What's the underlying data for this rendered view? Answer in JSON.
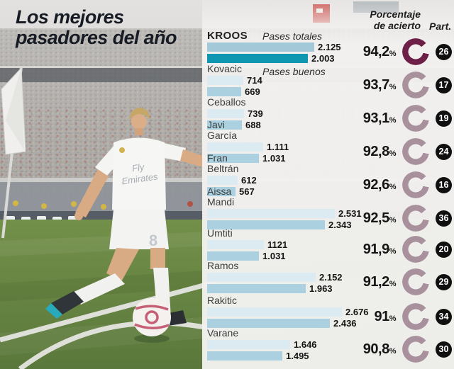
{
  "title": "Los mejores\npasadores del año",
  "photo": {
    "jersey": {
      "0": "Fly",
      "1": "Emirates"
    },
    "short_number": "8"
  },
  "chart_data": {
    "type": "bar",
    "orientation": "horizontal",
    "title": "Los mejores pasadores del año",
    "legend": {
      "total_label": "Pases totales",
      "good_label": "Pases buenos"
    },
    "headers": {
      "accuracy": "Porcentaje\nde acierto",
      "matches": "Part."
    },
    "percent_sign": "%",
    "xlim": [
      0,
      2676
    ],
    "colors": {
      "highlight_total_bar": "#a3c9d8",
      "highlight_good_bar": "#0f97b2",
      "total_bar": "#dcebf2",
      "good_bar": "#abd1e1",
      "ring_highlight": "#6e1f47",
      "ring": "#a8919c",
      "badge_bg": "#101010"
    },
    "players": [
      {
        "name": "KROOS",
        "total": "2.125",
        "good": "2.003",
        "accuracy": "94,2",
        "matches": "26",
        "highlight": true
      },
      {
        "name": "Kovacic",
        "total": "714",
        "good": "669",
        "accuracy": "93,7",
        "matches": "17"
      },
      {
        "name": "Ceballos",
        "total": "739",
        "good": "688",
        "accuracy": "93,1",
        "matches": "19"
      },
      {
        "name": "Javi\nGarcía",
        "total": "1.111",
        "good": "1.031",
        "accuracy": "92,8",
        "matches": "24"
      },
      {
        "name": "Fran\nBeltrán",
        "total": "612",
        "good": "567",
        "accuracy": "92,6",
        "matches": "16"
      },
      {
        "name": "Aissa\nMandi",
        "total": "2.531",
        "good": "2.343",
        "accuracy": "92,5",
        "matches": "36"
      },
      {
        "name": "Umtiti",
        "total": "1121",
        "good": "1.031",
        "accuracy": "91,9",
        "matches": "20"
      },
      {
        "name": "Ramos",
        "total": "2.152",
        "good": "1.963",
        "accuracy": "91,2",
        "matches": "29"
      },
      {
        "name": "Rakitic",
        "total": "2.676",
        "good": "2.436",
        "accuracy": "91",
        "matches": "34"
      },
      {
        "name": "Varane",
        "total": "1.646",
        "good": "1.495",
        "accuracy": "90,8",
        "matches": "30"
      }
    ]
  }
}
